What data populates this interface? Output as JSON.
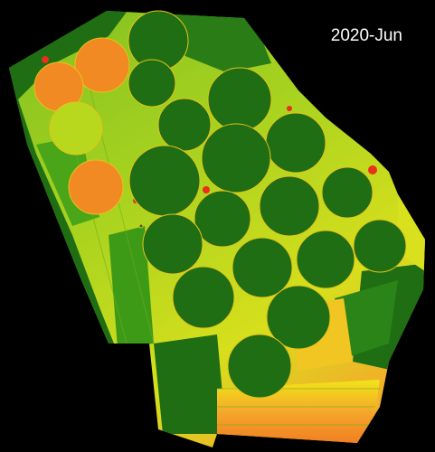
{
  "map": {
    "date_label": "2020-Jun",
    "colors": {
      "background": "#000000",
      "field_dark_green": "#1f6e14",
      "field_mid_green": "#3d9a17",
      "field_yellow_green": "#b7d81c",
      "field_yellow": "#f2e419",
      "field_orange": "#f28a23",
      "field_red": "#e8301a"
    },
    "pivots": [
      {
        "id": "pivot-01",
        "status": "dark-green"
      },
      {
        "id": "pivot-02",
        "status": "orange"
      },
      {
        "id": "pivot-03",
        "status": "orange"
      },
      {
        "id": "pivot-04",
        "status": "dark-green"
      },
      {
        "id": "pivot-05",
        "status": "dark-green"
      },
      {
        "id": "pivot-06",
        "status": "yellow-green"
      },
      {
        "id": "pivot-07",
        "status": "dark-green"
      },
      {
        "id": "pivot-08",
        "status": "dark-green"
      },
      {
        "id": "pivot-09",
        "status": "orange"
      },
      {
        "id": "pivot-10",
        "status": "dark-green"
      },
      {
        "id": "pivot-11",
        "status": "dark-green"
      },
      {
        "id": "pivot-12",
        "status": "dark-green"
      },
      {
        "id": "pivot-13",
        "status": "dark-green"
      },
      {
        "id": "pivot-14",
        "status": "dark-green"
      },
      {
        "id": "pivot-15",
        "status": "dark-green"
      },
      {
        "id": "pivot-16",
        "status": "dark-green"
      },
      {
        "id": "pivot-17",
        "status": "dark-green"
      },
      {
        "id": "pivot-18",
        "status": "dark-green"
      },
      {
        "id": "pivot-19",
        "status": "dark-green"
      },
      {
        "id": "pivot-20",
        "status": "dark-green"
      },
      {
        "id": "pivot-21",
        "status": "dark-green"
      },
      {
        "id": "pivot-22",
        "status": "dark-green"
      }
    ]
  }
}
